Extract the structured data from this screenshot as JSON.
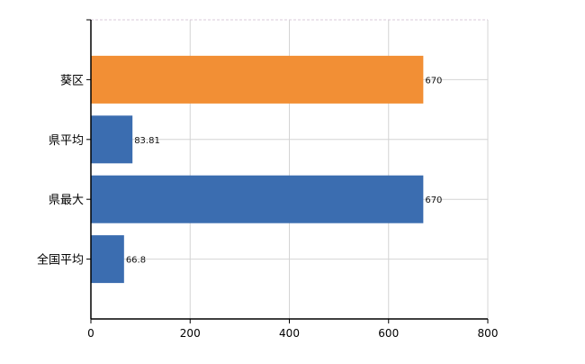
{
  "chart_data": {
    "type": "bar",
    "orientation": "horizontal",
    "categories": [
      "葵区",
      "県平均",
      "県最大",
      "全国平均"
    ],
    "values": [
      670,
      83.81,
      670,
      66.8
    ],
    "data_labels": [
      "670",
      "83.81",
      "670",
      "66.8"
    ],
    "bar_colors": [
      "#f28f35",
      "#3b6db0",
      "#3b6db0",
      "#3b6db0"
    ],
    "xlim": [
      0,
      800
    ],
    "xticks": [
      0,
      200,
      400,
      600,
      800
    ],
    "xtick_labels": [
      "0",
      "200",
      "400",
      "600",
      "800"
    ],
    "grid": true,
    "title": "",
    "xlabel": "",
    "ylabel": ""
  }
}
